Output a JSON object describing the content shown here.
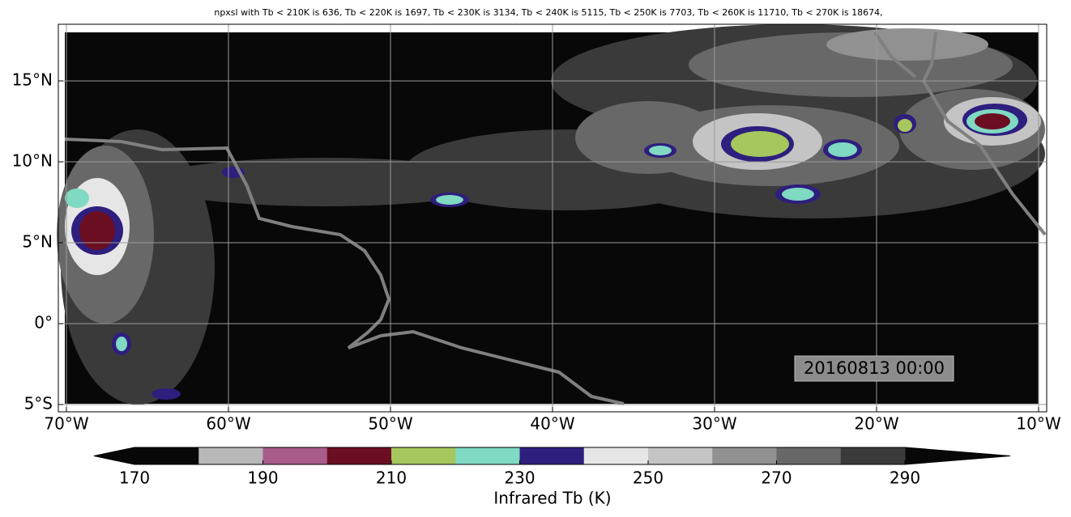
{
  "map": {
    "title": "npxsl with Tb < 210K is 636,  Tb < 220K is 1697,  Tb < 230K is 3134,  Tb < 240K is 5115,  Tb < 250K is 7703,  Tb < 260K is 11710,  Tb < 270K is 18674,",
    "xlim": [
      -70.5,
      -9.5
    ],
    "ylim": [
      -5.45,
      18.5
    ],
    "xticks": [
      {
        "value": -70,
        "label": "70°W"
      },
      {
        "value": -60,
        "label": "60°W"
      },
      {
        "value": -50,
        "label": "50°W"
      },
      {
        "value": -40,
        "label": "40°W"
      },
      {
        "value": -30,
        "label": "30°W"
      },
      {
        "value": -20,
        "label": "20°W"
      },
      {
        "value": -10,
        "label": "10°W"
      }
    ],
    "yticks": [
      {
        "value": -5,
        "label": "5°S"
      },
      {
        "value": 0,
        "label": "0°"
      },
      {
        "value": 5,
        "label": "5°N"
      },
      {
        "value": 10,
        "label": "10°N"
      },
      {
        "value": 15,
        "label": "15°N"
      }
    ],
    "grid": true,
    "timestamp": "20160813 00:00"
  },
  "colorbar": {
    "label": "Infrared Tb (K)",
    "clim": [
      170,
      290
    ],
    "ticks": [
      170,
      190,
      210,
      230,
      250,
      270,
      290
    ],
    "colors": [
      "#080808",
      "#b8b8b8",
      "#a85c8a",
      "#6b0e22",
      "#a5c75e",
      "#7fd9c3",
      "#2e1e7e",
      "#e6e6e6",
      "#c4c4c4",
      "#919191",
      "#686868",
      "#3a3a3a"
    ],
    "under_color": "#080808",
    "over_color": "#080808"
  }
}
